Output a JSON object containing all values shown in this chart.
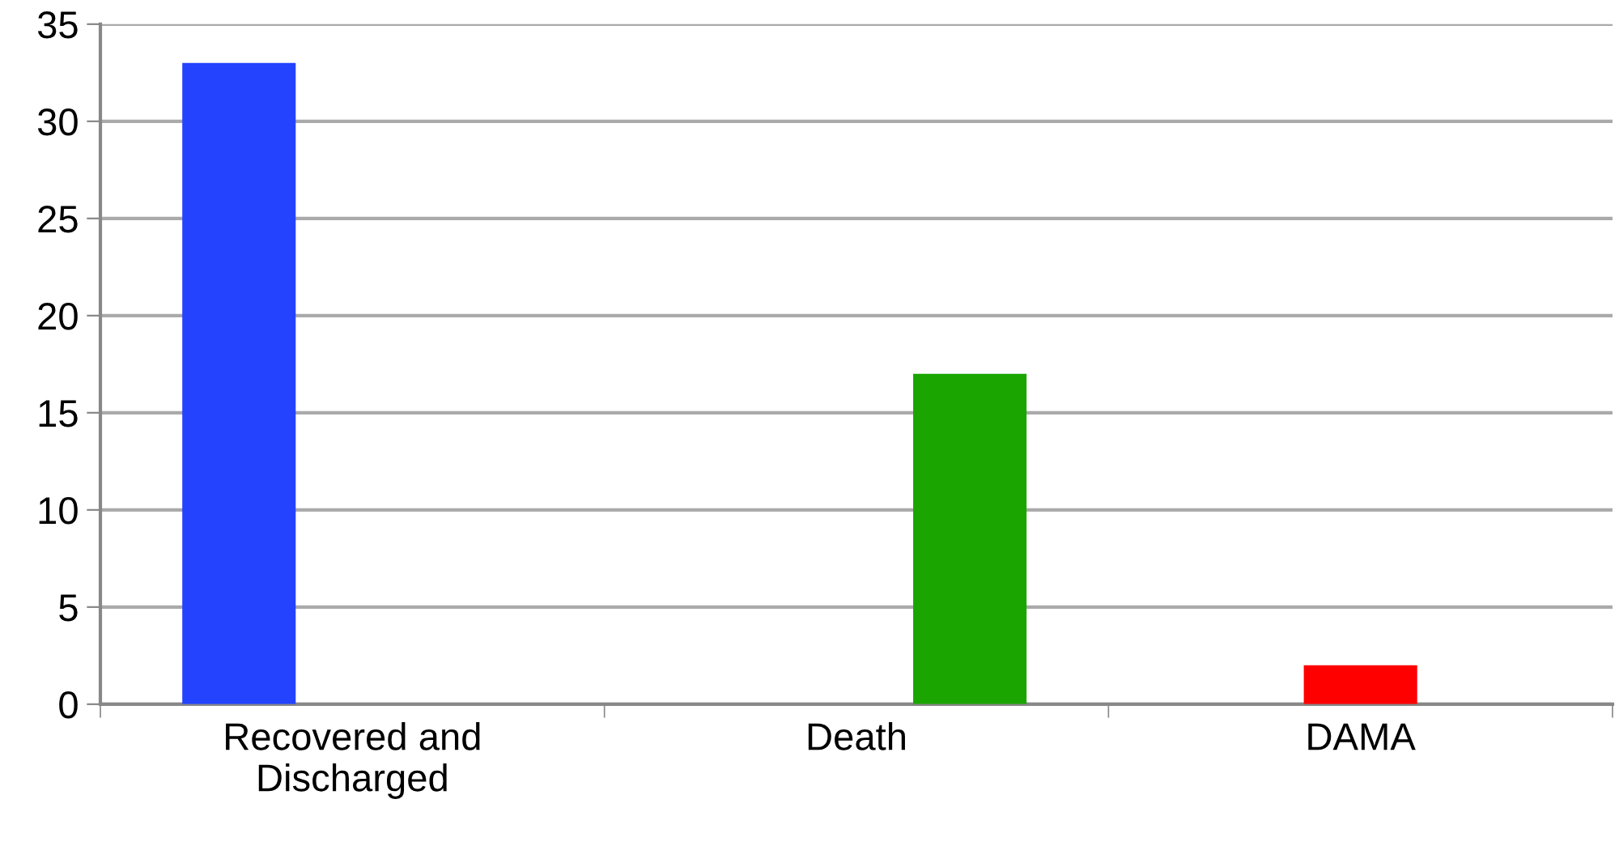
{
  "chart_data": {
    "type": "bar",
    "categories": [
      "Recovered and Discharged",
      "Death",
      "DAMA"
    ],
    "series": [
      {
        "color": "#2343ff",
        "values": [
          33,
          null,
          null
        ]
      },
      {
        "color": "#ff0000",
        "values": [
          null,
          null,
          2
        ]
      },
      {
        "color": "#1aa500",
        "values": [
          null,
          17,
          null
        ]
      }
    ],
    "ylim": [
      0,
      35
    ],
    "yticks": [
      0,
      5,
      10,
      15,
      20,
      25,
      30,
      35
    ],
    "grid": "y",
    "legend": false
  }
}
